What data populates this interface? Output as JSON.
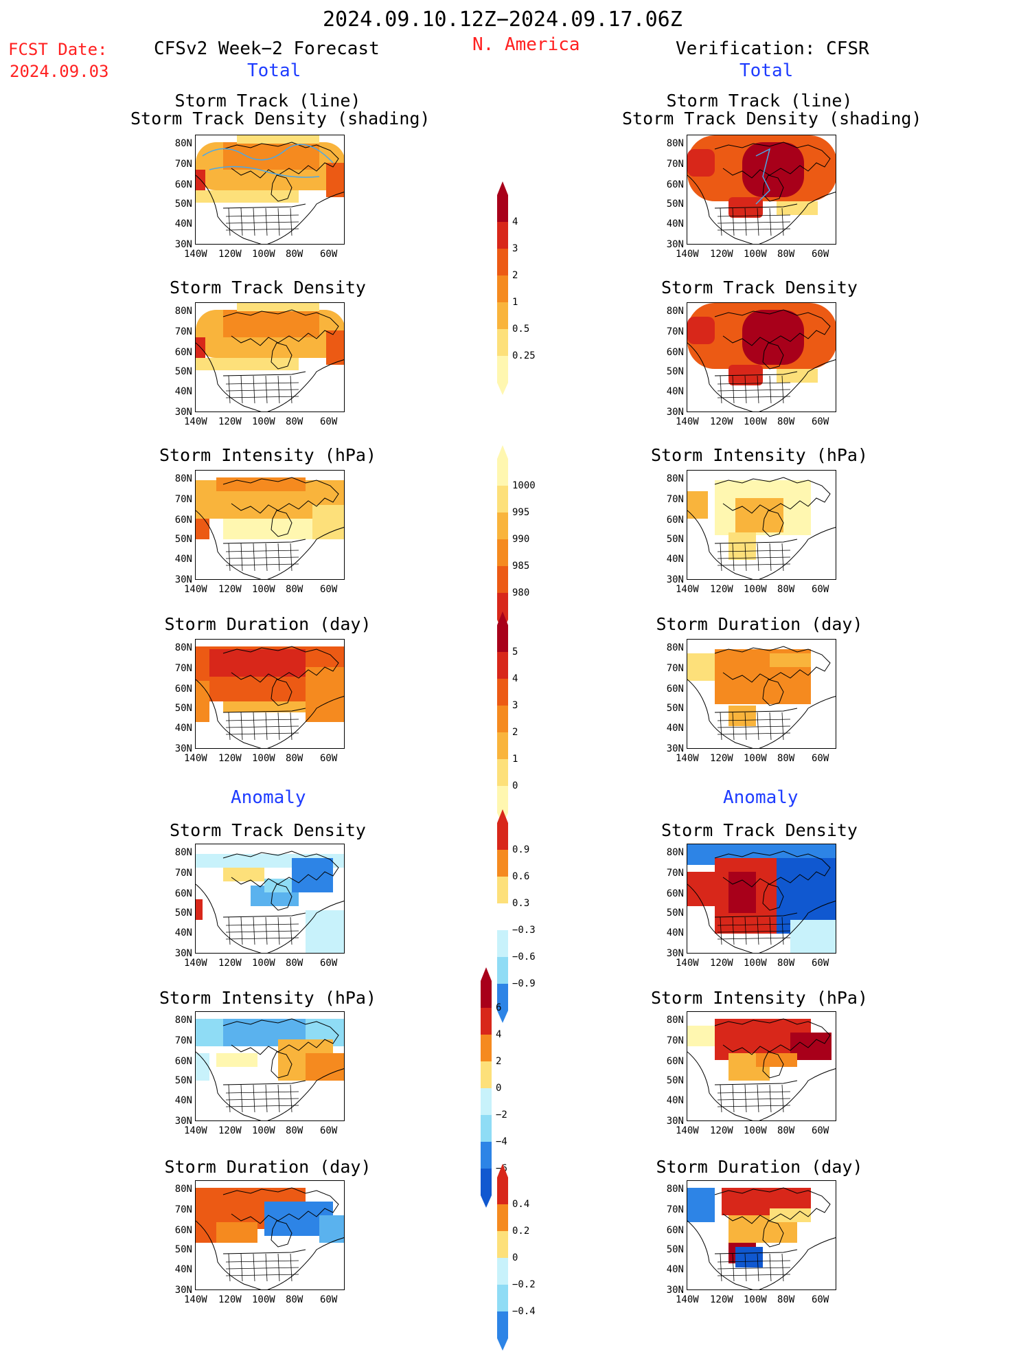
{
  "header": {
    "date_range": "2024.09.10.12Z−2024.09.17.06Z",
    "fcst_label": "FCST Date:",
    "fcst_date": "2024.09.03",
    "region": "N. America",
    "left_title": "CFSv2 Week−2 Forecast",
    "right_title": "Verification: CFSR",
    "total_label": "Total",
    "anomaly_label": "Anomaly"
  },
  "panel_titles": {
    "track_line": "Storm Track (line)",
    "track_density_shading": "Storm Track Density (shading)",
    "track_density": "Storm Track Density",
    "intensity": "Storm Intensity (hPa)",
    "duration": "Storm Duration (day)"
  },
  "axes": {
    "lat_ticks": [
      "80N",
      "70N",
      "60N",
      "50N",
      "40N",
      "30N"
    ],
    "lon_ticks": [
      "140W",
      "120W",
      "100W",
      "80W",
      "60W"
    ]
  },
  "colorbars": {
    "density_total": [
      "4",
      "3",
      "2",
      "1",
      "0.5",
      "0.25"
    ],
    "intensity_total": [
      "1000",
      "995",
      "990",
      "985",
      "980"
    ],
    "duration_total": [
      "5",
      "4",
      "3",
      "2",
      "1",
      "0"
    ],
    "density_anom": [
      "0.9",
      "0.6",
      "0.3",
      "−0.3",
      "−0.6",
      "−0.9"
    ],
    "intensity_anom": [
      "6",
      "4",
      "2",
      "0",
      "−2",
      "−4",
      "−6"
    ],
    "duration_anom": [
      "0.4",
      "0.2",
      "0",
      "−0.2",
      "−0.4"
    ]
  },
  "colors": {
    "warm": [
      "#fff7b0",
      "#fde07a",
      "#f9b43c",
      "#f58a1f",
      "#ec5a14",
      "#d8271a",
      "#a8001a"
    ],
    "cool": [
      "#c8f2fb",
      "#8fdcf5",
      "#5ab2ee",
      "#2d84e6",
      "#1058d0"
    ],
    "track_line": "#4aa8e8"
  }
}
